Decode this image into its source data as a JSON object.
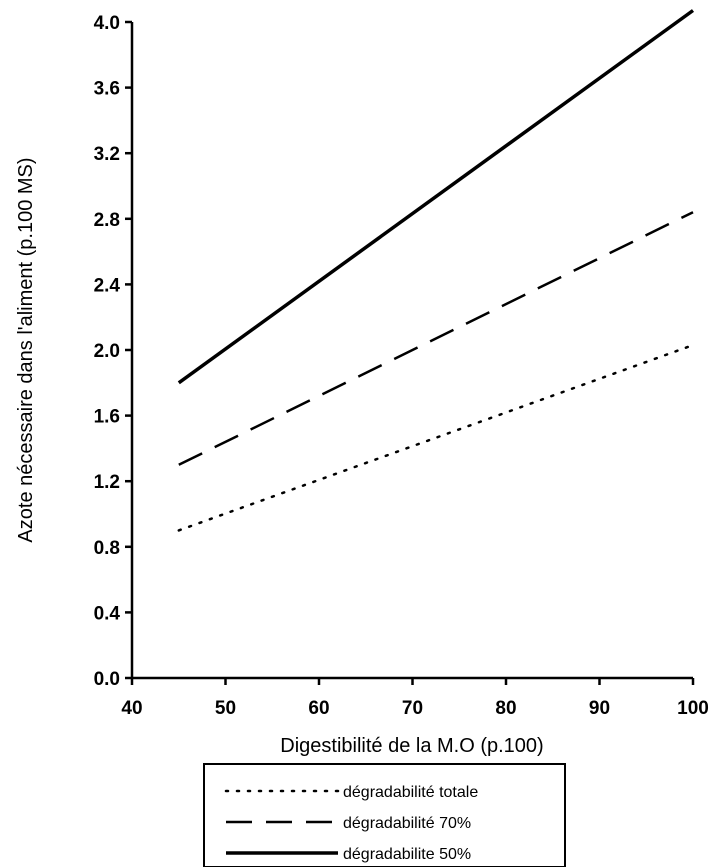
{
  "chart_data": {
    "type": "line",
    "xlabel": "Digestibilité de la M.O (p.100)",
    "ylabel": "Azote nécessaire dans l'aliment (p.100 MS)",
    "xlim": [
      40,
      100
    ],
    "ylim": [
      0.0,
      4.0
    ],
    "xticks": [
      "40",
      "50",
      "60",
      "70",
      "80",
      "90",
      "100"
    ],
    "yticks": [
      "0.0",
      "0.4",
      "0.8",
      "1.2",
      "1.6",
      "2.0",
      "2.4",
      "2.8",
      "3.2",
      "3.6",
      "4.0"
    ],
    "grid": false,
    "legend_position": "bottom-center",
    "series": [
      {
        "name": "dégradabilité totale",
        "style": "dotted",
        "x": [
          45,
          100
        ],
        "values": [
          0.9,
          2.03
        ]
      },
      {
        "name": "dégradabilité 70%",
        "style": "dashed",
        "x": [
          45,
          100
        ],
        "values": [
          1.3,
          2.84
        ]
      },
      {
        "name": "dégradabilite 50%",
        "style": "solid",
        "x": [
          45,
          100
        ],
        "values": [
          1.8,
          4.07
        ]
      }
    ]
  }
}
